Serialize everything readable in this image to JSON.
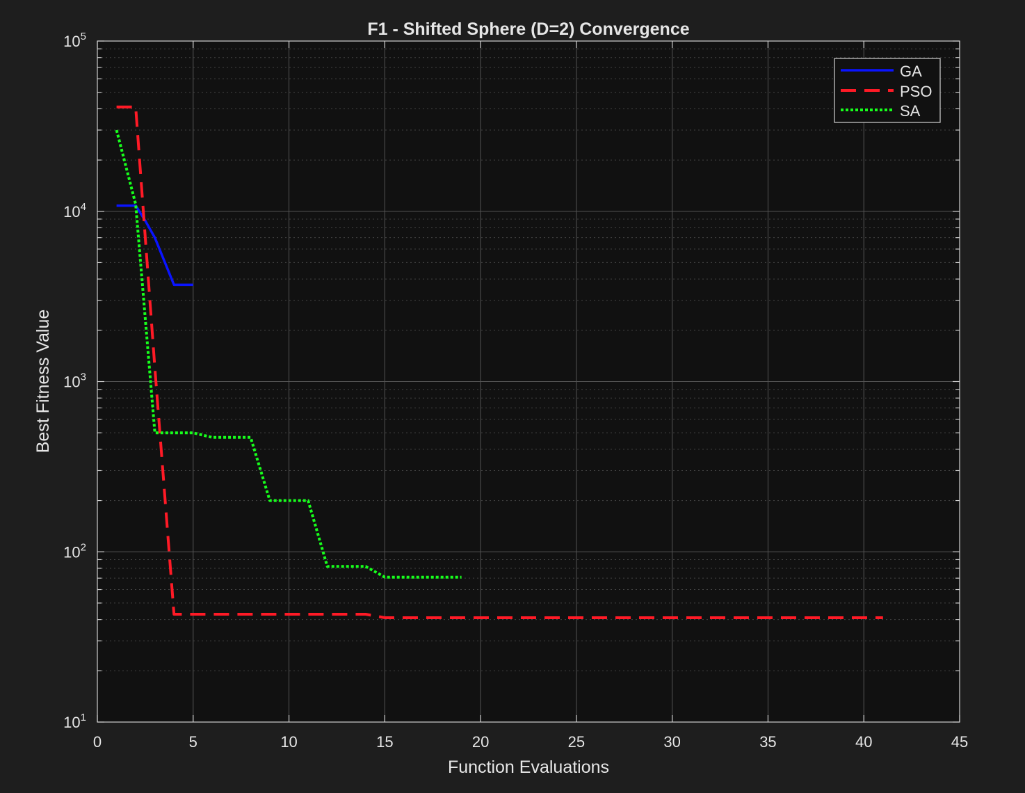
{
  "chart_data": {
    "type": "line",
    "title": "F1 - Shifted Sphere (D=2) Convergence",
    "xlabel": "Function Evaluations",
    "ylabel": "Best Fitness Value",
    "xlim": [
      0,
      45
    ],
    "ylim": [
      10,
      100000
    ],
    "yscale": "log",
    "grid": true,
    "minor_grid": true,
    "legend_position": "top-right",
    "x_ticks": [
      "0",
      "5",
      "10",
      "15",
      "20",
      "25",
      "30",
      "35",
      "40",
      "45"
    ],
    "y_ticks": [
      {
        "base": "10",
        "exp": "1"
      },
      {
        "base": "10",
        "exp": "2"
      },
      {
        "base": "10",
        "exp": "3"
      },
      {
        "base": "10",
        "exp": "4"
      },
      {
        "base": "10",
        "exp": "5"
      }
    ],
    "series": [
      {
        "name": "GA",
        "color": "#0a14ff",
        "style": "solid",
        "points": [
          [
            1,
            10800
          ],
          [
            2,
            10800
          ],
          [
            2.5,
            8800
          ],
          [
            3,
            7000
          ],
          [
            4,
            3700
          ],
          [
            5,
            3700
          ]
        ]
      },
      {
        "name": "PSO",
        "color": "#ff1a26",
        "style": "dashed",
        "points": [
          [
            1,
            41000
          ],
          [
            2,
            41000
          ],
          [
            3,
            1200
          ],
          [
            4,
            43
          ],
          [
            5,
            43
          ],
          [
            10,
            43
          ],
          [
            14,
            43
          ],
          [
            15,
            41
          ],
          [
            41,
            41
          ]
        ]
      },
      {
        "name": "SA",
        "color": "#17ff1c",
        "style": "dotted",
        "points": [
          [
            1,
            30000
          ],
          [
            2,
            11000
          ],
          [
            3,
            500
          ],
          [
            5,
            500
          ],
          [
            6,
            470
          ],
          [
            8,
            470
          ],
          [
            9,
            200
          ],
          [
            11,
            200
          ],
          [
            12,
            82
          ],
          [
            14,
            82
          ],
          [
            15,
            71
          ],
          [
            19,
            71
          ]
        ]
      }
    ]
  },
  "colors": {
    "figure_background": "#1e1e1e",
    "axes_background": "#111111",
    "axis_color": "#d0d0d0",
    "grid_color": "#555555",
    "text_color": "#e6e6e6"
  }
}
